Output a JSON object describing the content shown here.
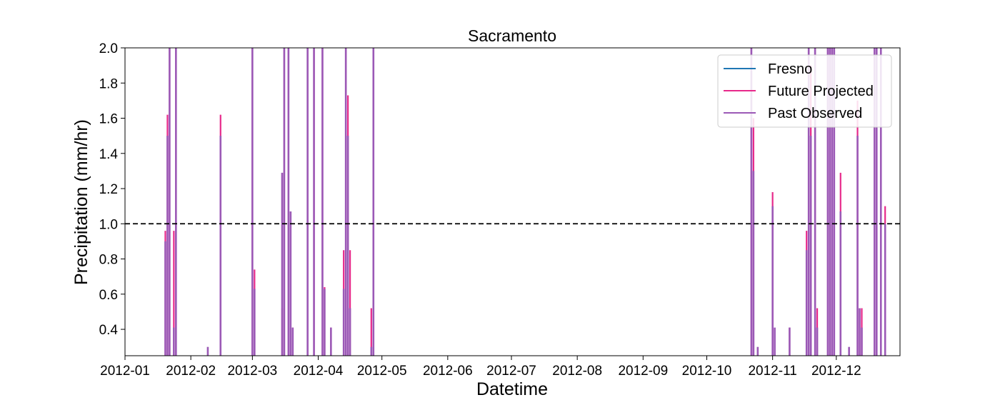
{
  "chart_data": {
    "type": "line",
    "title": "Sacramento",
    "xlabel": "Datetime",
    "ylabel": "Precipitation (mm/hr)",
    "xlim": [
      "2012-01-01",
      "2012-12-31"
    ],
    "ylim": [
      0.25,
      2.0
    ],
    "x_ticks": [
      "2012-01",
      "2012-02",
      "2012-03",
      "2012-04",
      "2012-05",
      "2012-06",
      "2012-07",
      "2012-08",
      "2012-09",
      "2012-10",
      "2012-11",
      "2012-12"
    ],
    "y_ticks": [
      0.4,
      0.6,
      0.8,
      1.0,
      1.2,
      1.4,
      1.6,
      1.8,
      2.0
    ],
    "y_tick_labels": [
      "0.4",
      "0.6",
      "0.8",
      "1.0",
      "1.2",
      "1.4",
      "1.6",
      "1.8",
      "2.0"
    ],
    "grid": false,
    "legend_position": "top-right",
    "reference_line": {
      "y": 1.0,
      "style": "dashed",
      "color": "#000000"
    },
    "series": [
      {
        "name": "Fresno",
        "color": "#1f77b4",
        "spikes": []
      },
      {
        "name": "Future Projected",
        "color": "#e7298a",
        "spikes": [
          [
            "2012-01-20",
            0.96
          ],
          [
            "2012-01-21",
            1.62
          ],
          [
            "2012-01-22",
            2.0
          ],
          [
            "2012-01-24",
            0.96
          ],
          [
            "2012-01-25",
            2.0
          ],
          [
            "2012-02-15",
            1.62
          ],
          [
            "2012-03-01",
            2.0
          ],
          [
            "2012-03-02",
            0.74
          ],
          [
            "2012-03-15",
            0.52
          ],
          [
            "2012-03-16",
            2.0
          ],
          [
            "2012-03-18",
            2.0
          ],
          [
            "2012-03-19",
            0.41
          ],
          [
            "2012-03-20",
            0.41
          ],
          [
            "2012-03-27",
            2.0
          ],
          [
            "2012-03-30",
            2.0
          ],
          [
            "2012-04-03",
            2.0
          ],
          [
            "2012-04-04",
            0.64
          ],
          [
            "2012-04-07",
            0.41
          ],
          [
            "2012-04-13",
            0.85
          ],
          [
            "2012-04-14",
            2.0
          ],
          [
            "2012-04-15",
            1.73
          ],
          [
            "2012-04-16",
            0.85
          ],
          [
            "2012-04-26",
            0.52
          ],
          [
            "2012-04-27",
            2.0
          ],
          [
            "2012-10-22",
            2.0
          ],
          [
            "2012-10-23",
            1.6
          ],
          [
            "2012-11-01",
            1.18
          ],
          [
            "2012-11-09",
            0.41
          ],
          [
            "2012-11-17",
            0.96
          ],
          [
            "2012-11-18",
            2.0
          ],
          [
            "2012-11-19",
            1.9
          ],
          [
            "2012-11-21",
            2.0
          ],
          [
            "2012-11-22",
            0.52
          ],
          [
            "2012-11-27",
            2.0
          ],
          [
            "2012-11-28",
            2.0
          ],
          [
            "2012-11-29",
            2.0
          ],
          [
            "2012-11-30",
            2.0
          ],
          [
            "2012-12-03",
            1.29
          ],
          [
            "2012-12-11",
            1.7
          ],
          [
            "2012-12-12",
            0.52
          ],
          [
            "2012-12-13",
            0.52
          ],
          [
            "2012-12-19",
            2.0
          ],
          [
            "2012-12-20",
            2.0
          ],
          [
            "2012-12-22",
            2.0
          ],
          [
            "2012-12-24",
            1.1
          ]
        ]
      },
      {
        "name": "Past Observed",
        "color": "#9b59b6",
        "spikes": [
          [
            "2012-01-20",
            0.9
          ],
          [
            "2012-01-21",
            1.5
          ],
          [
            "2012-01-22",
            2.0
          ],
          [
            "2012-01-24",
            0.41
          ],
          [
            "2012-01-25",
            2.0
          ],
          [
            "2012-02-09",
            0.3
          ],
          [
            "2012-02-15",
            1.5
          ],
          [
            "2012-03-01",
            2.0
          ],
          [
            "2012-03-02",
            0.63
          ],
          [
            "2012-03-15",
            1.29
          ],
          [
            "2012-03-16",
            2.0
          ],
          [
            "2012-03-18",
            2.0
          ],
          [
            "2012-03-19",
            1.07
          ],
          [
            "2012-03-20",
            0.41
          ],
          [
            "2012-03-27",
            2.0
          ],
          [
            "2012-03-30",
            2.0
          ],
          [
            "2012-04-03",
            2.0
          ],
          [
            "2012-04-04",
            0.63
          ],
          [
            "2012-04-07",
            0.41
          ],
          [
            "2012-04-13",
            0.63
          ],
          [
            "2012-04-14",
            2.0
          ],
          [
            "2012-04-15",
            1.5
          ],
          [
            "2012-04-16",
            0.52
          ],
          [
            "2012-04-26",
            0.3
          ],
          [
            "2012-04-27",
            2.0
          ],
          [
            "2012-10-22",
            2.0
          ],
          [
            "2012-10-23",
            1.3
          ],
          [
            "2012-10-25",
            0.3
          ],
          [
            "2012-11-01",
            1.1
          ],
          [
            "2012-11-02",
            0.41
          ],
          [
            "2012-11-09",
            0.41
          ],
          [
            "2012-11-17",
            0.85
          ],
          [
            "2012-11-18",
            2.0
          ],
          [
            "2012-11-19",
            1.5
          ],
          [
            "2012-11-21",
            2.0
          ],
          [
            "2012-11-22",
            0.41
          ],
          [
            "2012-11-27",
            2.0
          ],
          [
            "2012-11-28",
            2.0
          ],
          [
            "2012-11-29",
            2.0
          ],
          [
            "2012-11-30",
            2.0
          ],
          [
            "2012-12-03",
            1.07
          ],
          [
            "2012-12-07",
            0.3
          ],
          [
            "2012-12-11",
            1.5
          ],
          [
            "2012-12-12",
            0.52
          ],
          [
            "2012-12-13",
            0.41
          ],
          [
            "2012-12-19",
            2.0
          ],
          [
            "2012-12-20",
            2.0
          ],
          [
            "2012-12-22",
            2.0
          ],
          [
            "2012-12-24",
            1.0
          ]
        ]
      }
    ]
  }
}
